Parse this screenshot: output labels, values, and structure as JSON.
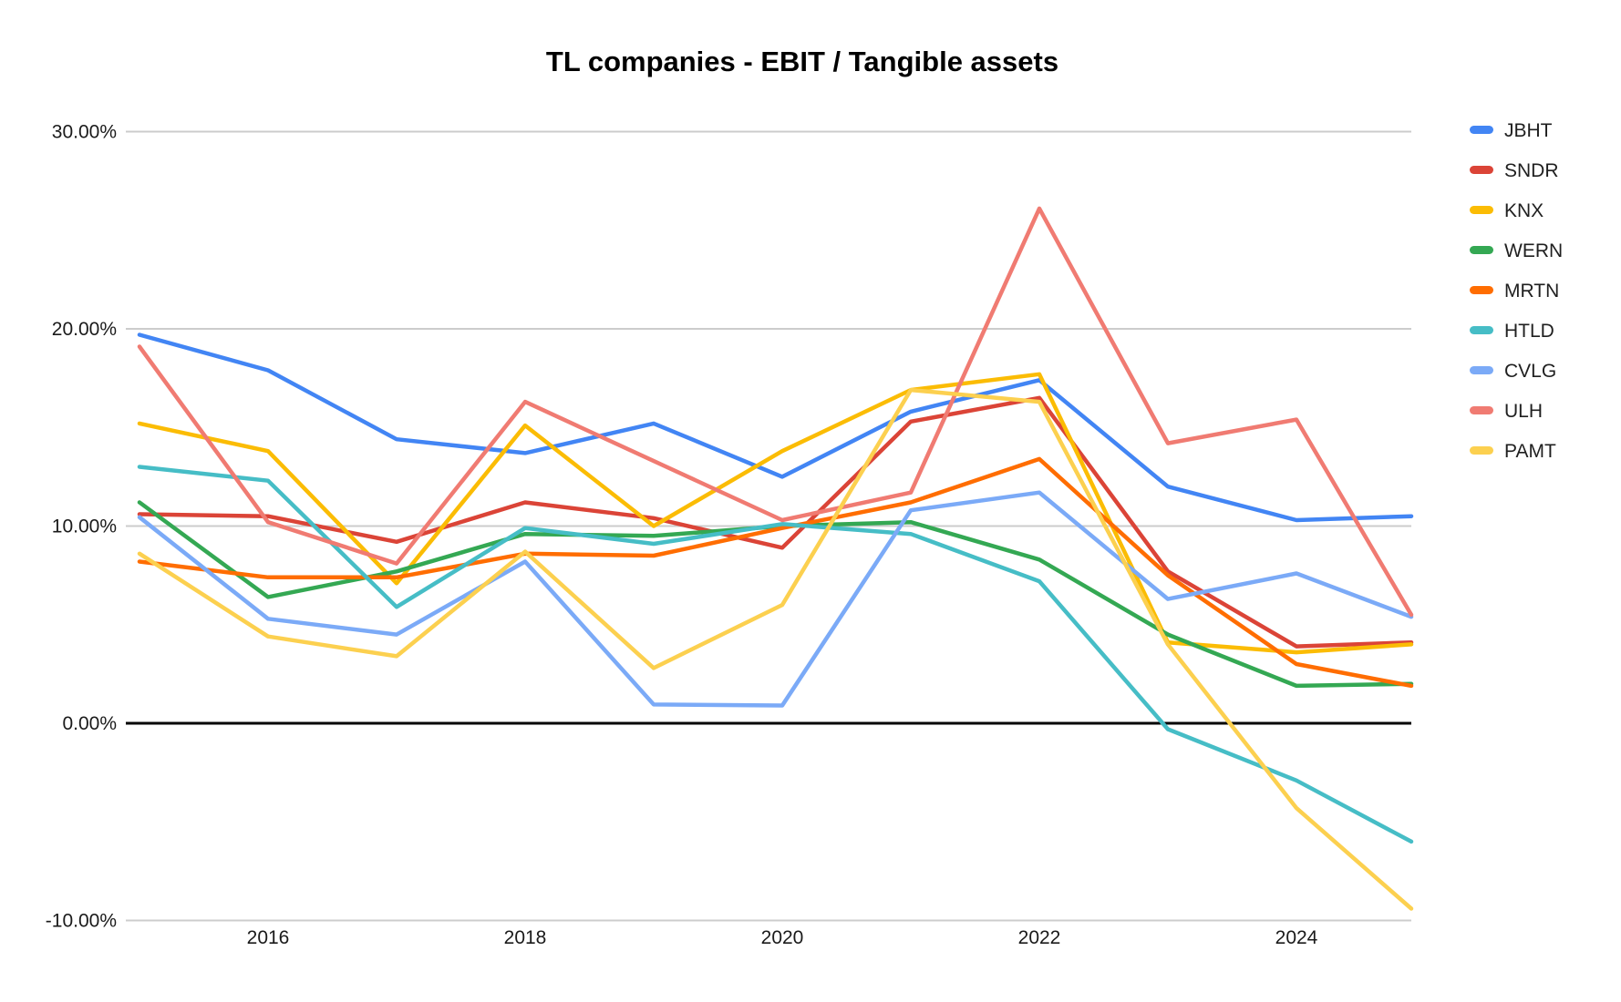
{
  "chart": {
    "title": "TL companies - EBIT / Tangible assets"
  },
  "chart_data": {
    "type": "line",
    "title": "TL companies - EBIT / Tangible assets",
    "xlabel": "",
    "ylabel": "",
    "x": [
      2015,
      2016,
      2017,
      2018,
      2019,
      2020,
      2021,
      2022,
      2023,
      2024,
      2025
    ],
    "x_tick_labels": [
      "2016",
      "2018",
      "2020",
      "2022",
      "2024"
    ],
    "x_tick_years": [
      2016,
      2018,
      2020,
      2022,
      2024
    ],
    "ylim": [
      -10,
      30
    ],
    "y_ticks": [
      {
        "value": 30,
        "label": "30.00%"
      },
      {
        "value": 20,
        "label": "20.00%"
      },
      {
        "value": 10,
        "label": "10.00%"
      },
      {
        "value": 0,
        "label": "0.00%"
      },
      {
        "value": -10,
        "label": "-10.00%"
      }
    ],
    "grid": true,
    "legend_position": "right",
    "units": "percent",
    "series": [
      {
        "name": "JBHT",
        "color": "#4285F4",
        "values": [
          19.7,
          17.9,
          14.4,
          13.7,
          15.2,
          12.5,
          15.8,
          17.4,
          12.0,
          10.3,
          10.5
        ]
      },
      {
        "name": "SNDR",
        "color": "#DB4437",
        "values": [
          10.6,
          10.5,
          9.2,
          11.2,
          10.4,
          8.9,
          15.3,
          16.5,
          7.7,
          3.9,
          4.1
        ]
      },
      {
        "name": "KNX",
        "color": "#FBBC04",
        "values": [
          15.2,
          13.8,
          7.1,
          15.1,
          10.0,
          13.8,
          16.9,
          17.7,
          4.1,
          3.6,
          4.0
        ]
      },
      {
        "name": "WERN",
        "color": "#34A853",
        "values": [
          11.2,
          6.4,
          7.7,
          9.6,
          9.5,
          10.0,
          10.2,
          8.3,
          4.5,
          1.9,
          2.0
        ]
      },
      {
        "name": "MRTN",
        "color": "#FF6D01",
        "values": [
          8.2,
          7.4,
          7.4,
          8.6,
          8.5,
          9.9,
          11.2,
          13.4,
          7.5,
          3.0,
          1.9
        ]
      },
      {
        "name": "HTLD",
        "color": "#46BDC6",
        "values": [
          13.0,
          12.3,
          5.9,
          9.9,
          9.1,
          10.1,
          9.6,
          7.2,
          -0.3,
          -2.9,
          -6.0
        ]
      },
      {
        "name": "CVLG",
        "color": "#7BAAF7",
        "values": [
          10.45,
          5.3,
          4.5,
          8.2,
          0.95,
          0.9,
          10.8,
          11.7,
          6.3,
          7.6,
          5.4
        ]
      },
      {
        "name": "ULH",
        "color": "#F07B72",
        "values": [
          19.1,
          10.2,
          8.1,
          16.3,
          13.3,
          10.3,
          11.7,
          26.1,
          14.2,
          15.4,
          5.5
        ]
      },
      {
        "name": "PAMT",
        "color": "#FCD04F",
        "values": [
          8.6,
          4.4,
          3.4,
          8.7,
          2.8,
          6.0,
          16.9,
          16.3,
          4.0,
          -4.3,
          -9.4
        ]
      }
    ],
    "gridline_color": "#cccccc",
    "zero_line_color": "#000000"
  }
}
